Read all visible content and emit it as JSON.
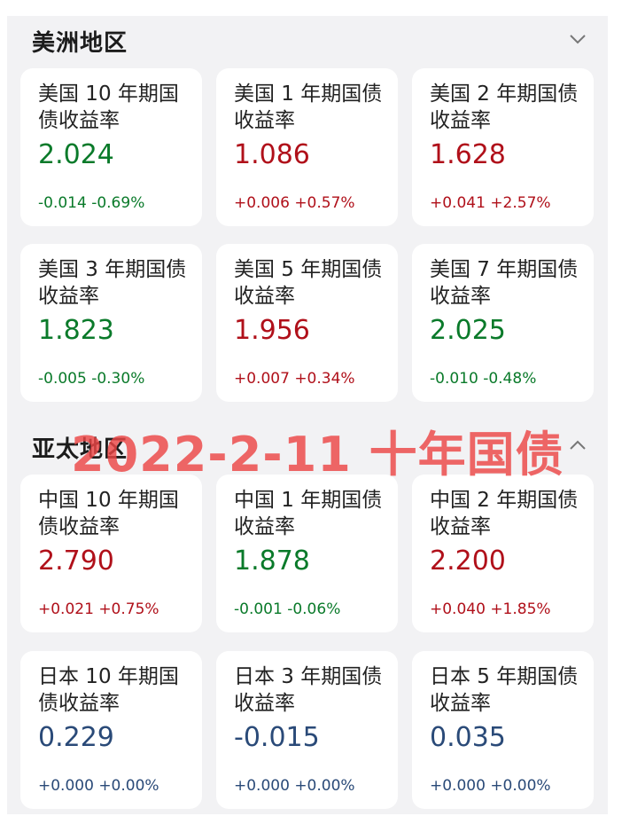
{
  "sections": [
    {
      "title": "美洲地区",
      "chevron": "chevron-down-icon",
      "cards": [
        {
          "name": "美国 10 年期国债收益率",
          "value": "2.024",
          "change": "-0.014 -0.69%",
          "color": "#0a7a2a"
        },
        {
          "name": "美国 1 年期国债收益率",
          "value": "1.086",
          "change": "+0.006 +0.57%",
          "color": "#b0101a"
        },
        {
          "name": "美国 2 年期国债收益率",
          "value": "1.628",
          "change": "+0.041 +2.57%",
          "color": "#b0101a"
        },
        {
          "name": "美国 3 年期国债收益率",
          "value": "1.823",
          "change": "-0.005 -0.30%",
          "color": "#0a7a2a"
        },
        {
          "name": "美国 5 年期国债收益率",
          "value": "1.956",
          "change": "+0.007 +0.34%",
          "color": "#b0101a"
        },
        {
          "name": "美国 7 年期国债收益率",
          "value": "2.025",
          "change": "-0.010 -0.48%",
          "color": "#0a7a2a"
        }
      ]
    },
    {
      "title": "亚太地区",
      "chevron": "chevron-up-icon",
      "cards": [
        {
          "name": "中国 10 年期国债收益率",
          "value": "2.790",
          "change": "+0.021 +0.75%",
          "color": "#b0101a"
        },
        {
          "name": "中国 1 年期国债收益率",
          "value": "1.878",
          "change": "-0.001 -0.06%",
          "color": "#0a7a2a"
        },
        {
          "name": "中国 2 年期国债收益率",
          "value": "2.200",
          "change": "+0.040 +1.85%",
          "color": "#b0101a"
        },
        {
          "name": "日本 10 年期国债收益率",
          "value": "0.229",
          "change": "+0.000 +0.00%",
          "color": "#2a4a78"
        },
        {
          "name": "日本 3 年期国债收益率",
          "value": "-0.015",
          "change": "+0.000 +0.00%",
          "color": "#2a4a78"
        },
        {
          "name": "日本 5 年期国债收益率",
          "value": "0.035",
          "change": "+0.000 +0.00%",
          "color": "#2a4a78"
        }
      ]
    }
  ],
  "watermark": "2022-2-11 十年国债"
}
